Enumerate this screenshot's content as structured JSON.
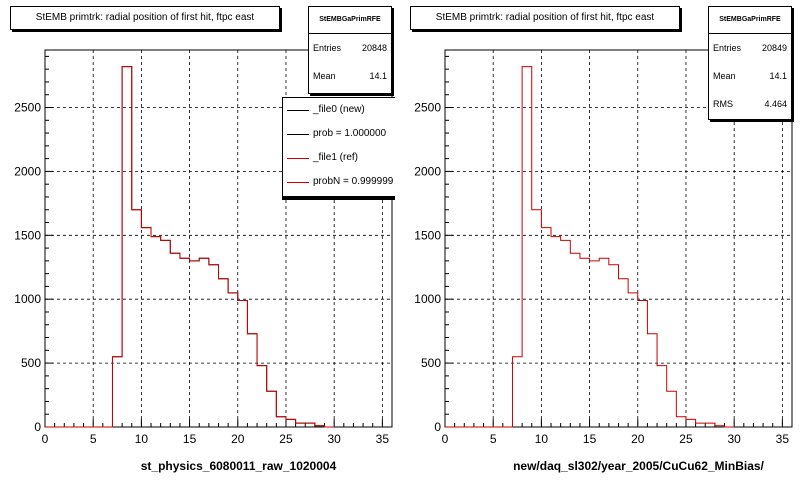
{
  "chart_data": [
    {
      "type": "histogram",
      "title": "StEMB primtrk: radial position of first hit, ftpc east",
      "xlabel": "st_physics_6080011_raw_1020004",
      "ylabel": "",
      "xlim": [
        0,
        36
      ],
      "ylim": [
        0,
        2950
      ],
      "xticks": [
        0,
        5,
        10,
        15,
        20,
        25,
        30,
        35
      ],
      "yticks": [
        0,
        500,
        1000,
        1500,
        2000,
        2500
      ],
      "grid": true,
      "bin_edges": [
        0,
        1,
        2,
        3,
        4,
        5,
        6,
        7,
        8,
        9,
        10,
        11,
        12,
        13,
        14,
        15,
        16,
        17,
        18,
        19,
        20,
        21,
        22,
        23,
        24,
        25,
        26,
        27,
        28,
        29,
        30
      ],
      "series": [
        {
          "name": "_file0 (new)",
          "color": "#000000",
          "values": [
            0,
            0,
            0,
            0,
            0,
            0,
            0,
            550,
            2820,
            1700,
            1560,
            1490,
            1460,
            1360,
            1320,
            1300,
            1320,
            1270,
            1160,
            1050,
            990,
            730,
            480,
            280,
            80,
            60,
            30,
            30,
            10,
            0
          ]
        },
        {
          "name": "_file1 (ref)",
          "color": "#cc0000",
          "values": [
            0,
            0,
            0,
            0,
            0,
            0,
            0,
            550,
            2820,
            1700,
            1560,
            1490,
            1460,
            1360,
            1320,
            1300,
            1320,
            1270,
            1160,
            1050,
            990,
            730,
            480,
            280,
            80,
            60,
            30,
            30,
            10,
            0
          ]
        }
      ],
      "stats": {
        "header": "StEMBGaPrimRFE",
        "entries": "20848",
        "mean": "14.1"
      },
      "legend": [
        {
          "label": "_file0 (new)",
          "color": "#000000"
        },
        {
          "label": "prob = 1.000000",
          "color": "#000000"
        },
        {
          "label": "_file1 (ref)",
          "color": "#cc0000"
        },
        {
          "label": "probN = 0.999999",
          "color": "#cc0000"
        }
      ]
    },
    {
      "type": "histogram",
      "title": "StEMB primtrk: radial position of first hit, ftpc east",
      "xlabel": "new/daq_sl302/year_2005/CuCu62_MinBias/",
      "ylabel": "",
      "xlim": [
        0,
        36
      ],
      "ylim": [
        0,
        2950
      ],
      "xticks": [
        0,
        5,
        10,
        15,
        20,
        25,
        30,
        35
      ],
      "yticks": [
        0,
        500,
        1000,
        1500,
        2000,
        2500
      ],
      "grid": true,
      "bin_edges": [
        0,
        1,
        2,
        3,
        4,
        5,
        6,
        7,
        8,
        9,
        10,
        11,
        12,
        13,
        14,
        15,
        16,
        17,
        18,
        19,
        20,
        21,
        22,
        23,
        24,
        25,
        26,
        27,
        28,
        29,
        30
      ],
      "series": [
        {
          "name": "",
          "color": "#cc0000",
          "values": [
            0,
            0,
            0,
            0,
            0,
            0,
            0,
            550,
            2820,
            1700,
            1560,
            1490,
            1460,
            1360,
            1320,
            1300,
            1320,
            1270,
            1160,
            1050,
            990,
            730,
            480,
            280,
            80,
            60,
            30,
            30,
            10,
            0
          ]
        }
      ],
      "stats": {
        "header": "StEMBGaPrimRFE",
        "entries": "20849",
        "mean": "14.1",
        "rms": "4.464"
      }
    }
  ],
  "stats_labels": {
    "entries": "Entries",
    "mean": "Mean",
    "rms": "RMS"
  }
}
